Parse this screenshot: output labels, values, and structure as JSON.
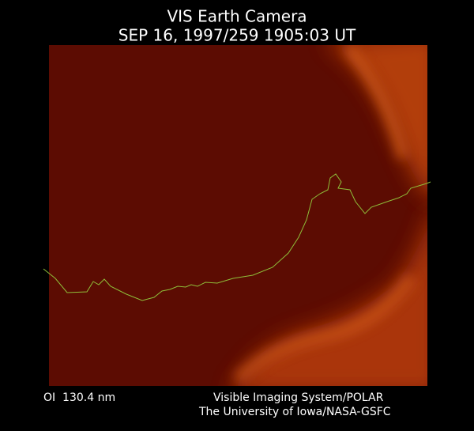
{
  "header": {
    "title": "VIS Earth Camera",
    "subtitle": "SEP 16, 1997/259 1905:03 UT"
  },
  "footer": {
    "filter": "OI  130.4 nm",
    "credit_line1": "Visible Imaging System/POLAR",
    "credit_line2": "The University of Iowa/NASA-GSFC"
  }
}
